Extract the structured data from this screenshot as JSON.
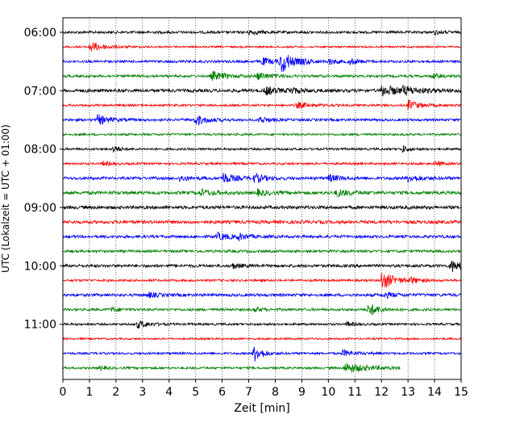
{
  "chart_data": {
    "type": "line",
    "title": "",
    "xlabel": "Zeit  [min]",
    "ylabel": "UTC (Lokalzeit = UTC + 01:00)",
    "xlim": [
      0,
      15
    ],
    "xticks": [
      "0",
      "1",
      "2",
      "3",
      "4",
      "5",
      "6",
      "7",
      "8",
      "9",
      "10",
      "11",
      "12",
      "13",
      "14",
      "15"
    ],
    "yticks": [
      "06:00",
      "07:00",
      "08:00",
      "09:00",
      "10:00",
      "11:00"
    ],
    "grid_x": true,
    "line_colors": [
      "#000000",
      "#ff0000",
      "#0000ff",
      "#008000"
    ],
    "rows": [
      {
        "start": "06:00",
        "color": "#000000",
        "end_min": 15,
        "amp": 0.35,
        "events": [
          [
            7.0,
            0.6,
            0.4
          ],
          [
            14.0,
            0.5,
            0.3
          ]
        ]
      },
      {
        "start": "06:15",
        "color": "#ff0000",
        "end_min": 15,
        "amp": 0.25,
        "events": [
          [
            1.0,
            1.4,
            0.5
          ]
        ]
      },
      {
        "start": "06:30",
        "color": "#0000ff",
        "end_min": 15,
        "amp": 0.35,
        "events": [
          [
            8.2,
            3.5,
            0.35
          ],
          [
            7.5,
            1.0,
            0.4
          ],
          [
            9.0,
            0.7,
            0.3
          ],
          [
            10.0,
            0.8,
            0.3
          ],
          [
            10.8,
            0.8,
            0.3
          ]
        ]
      },
      {
        "start": "06:45",
        "color": "#008000",
        "end_min": 15,
        "amp": 0.35,
        "events": [
          [
            5.6,
            1.2,
            0.5
          ],
          [
            7.3,
            1.0,
            0.5
          ],
          [
            13.9,
            0.7,
            0.3
          ]
        ]
      },
      {
        "start": "07:00",
        "color": "#000000",
        "end_min": 15,
        "amp": 0.45,
        "events": [
          [
            7.6,
            1.2,
            0.4
          ],
          [
            8.5,
            0.8,
            0.4
          ],
          [
            12.0,
            1.4,
            0.7
          ],
          [
            12.8,
            0.8,
            0.6
          ]
        ]
      },
      {
        "start": "07:15",
        "color": "#ff0000",
        "end_min": 15,
        "amp": 0.3,
        "events": [
          [
            8.8,
            0.8,
            0.5
          ],
          [
            13.0,
            1.4,
            0.4
          ]
        ]
      },
      {
        "start": "07:30",
        "color": "#0000ff",
        "end_min": 15,
        "amp": 0.35,
        "events": [
          [
            1.3,
            1.4,
            0.4
          ],
          [
            5.0,
            1.4,
            0.4
          ],
          [
            7.4,
            1.0,
            0.3
          ]
        ]
      },
      {
        "start": "07:45",
        "color": "#008000",
        "end_min": 15,
        "amp": 0.3,
        "events": []
      },
      {
        "start": "08:00",
        "color": "#000000",
        "end_min": 15,
        "amp": 0.3,
        "events": [
          [
            1.9,
            1.2,
            0.2
          ],
          [
            12.8,
            1.0,
            0.2
          ]
        ]
      },
      {
        "start": "08:15",
        "color": "#ff0000",
        "end_min": 15,
        "amp": 0.3,
        "events": [
          [
            1.5,
            0.6,
            0.3
          ],
          [
            14.0,
            0.6,
            0.3
          ]
        ]
      },
      {
        "start": "08:30",
        "color": "#0000ff",
        "end_min": 15,
        "amp": 0.4,
        "events": [
          [
            6.0,
            1.5,
            0.4
          ],
          [
            7.2,
            1.1,
            0.4
          ],
          [
            4.4,
            0.8,
            0.3
          ],
          [
            10.0,
            0.9,
            0.4
          ],
          [
            13.0,
            0.9,
            0.5
          ]
        ]
      },
      {
        "start": "08:45",
        "color": "#008000",
        "end_min": 15,
        "amp": 0.45,
        "events": [
          [
            5.2,
            0.9,
            0.4
          ],
          [
            7.3,
            0.8,
            0.4
          ],
          [
            10.3,
            0.9,
            0.5
          ]
        ]
      },
      {
        "start": "09:00",
        "color": "#000000",
        "end_min": 15,
        "amp": 0.45,
        "events": []
      },
      {
        "start": "09:15",
        "color": "#ff0000",
        "end_min": 15,
        "amp": 0.45,
        "events": []
      },
      {
        "start": "09:30",
        "color": "#0000ff",
        "end_min": 15,
        "amp": 0.4,
        "events": [
          [
            5.8,
            0.9,
            0.5
          ],
          [
            6.6,
            0.8,
            0.3
          ]
        ]
      },
      {
        "start": "09:45",
        "color": "#008000",
        "end_min": 15,
        "amp": 0.35,
        "events": []
      },
      {
        "start": "10:00",
        "color": "#000000",
        "end_min": 15,
        "amp": 0.4,
        "events": [
          [
            14.6,
            1.6,
            0.5
          ],
          [
            6.4,
            0.7,
            0.3
          ]
        ]
      },
      {
        "start": "10:15",
        "color": "#ff0000",
        "end_min": 15,
        "amp": 0.3,
        "events": [
          [
            12.0,
            2.6,
            0.45
          ],
          [
            13.1,
            0.7,
            0.3
          ]
        ]
      },
      {
        "start": "10:30",
        "color": "#0000ff",
        "end_min": 15,
        "amp": 0.4,
        "events": [
          [
            3.2,
            0.7,
            0.3
          ],
          [
            12.1,
            0.7,
            0.4
          ]
        ]
      },
      {
        "start": "10:45",
        "color": "#008000",
        "end_min": 15,
        "amp": 0.35,
        "events": [
          [
            11.5,
            2.0,
            0.35
          ],
          [
            1.8,
            0.6,
            0.3
          ],
          [
            7.2,
            0.6,
            0.3
          ]
        ]
      },
      {
        "start": "11:00",
        "color": "#000000",
        "end_min": 15,
        "amp": 0.3,
        "events": [
          [
            2.8,
            1.0,
            0.4
          ],
          [
            10.7,
            0.6,
            0.3
          ]
        ]
      },
      {
        "start": "11:15",
        "color": "#ff0000",
        "end_min": 15,
        "amp": 0.25,
        "events": []
      },
      {
        "start": "11:30",
        "color": "#0000ff",
        "end_min": 15,
        "amp": 0.3,
        "events": [
          [
            7.2,
            2.4,
            0.3
          ],
          [
            10.5,
            0.9,
            0.4
          ]
        ]
      },
      {
        "start": "11:45",
        "color": "#008000",
        "end_min": 12.7,
        "amp": 0.3,
        "events": [
          [
            10.6,
            1.4,
            0.8
          ],
          [
            1.4,
            0.6,
            0.2
          ]
        ]
      }
    ]
  }
}
